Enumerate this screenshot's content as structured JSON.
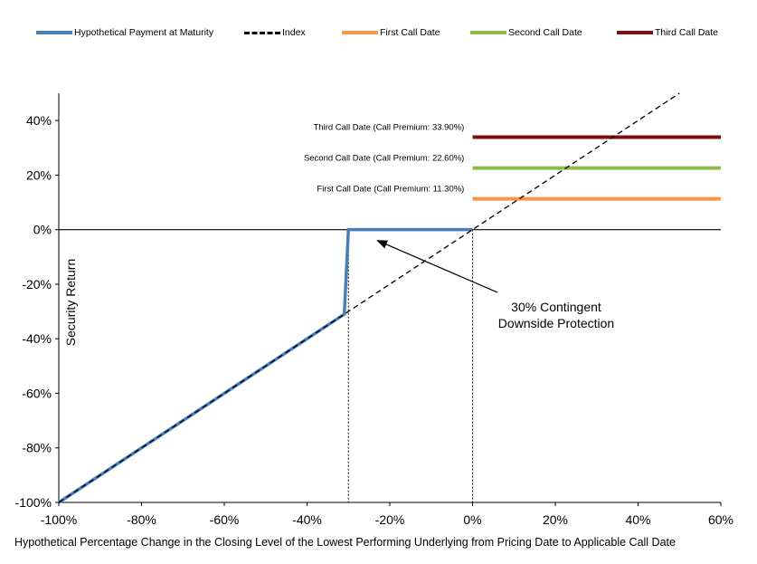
{
  "chart_data": {
    "type": "line",
    "xlabel": "Hypothetical Percentage Change in the Closing Level of the Lowest Performing Underlying from Pricing Date to Applicable Call Date",
    "ylabel": "Security Return",
    "xlim": [
      -100,
      60
    ],
    "ylim": [
      -100,
      50
    ],
    "x_ticks": [
      "-100%",
      "-80%",
      "-60%",
      "-40%",
      "-20%",
      "0%",
      "20%",
      "40%",
      "60%"
    ],
    "y_ticks": [
      "-100%",
      "-80%",
      "-60%",
      "-40%",
      "-20%",
      "0%",
      "20%",
      "40%"
    ],
    "grid": false,
    "legend_position": "top",
    "series": [
      {
        "name": "Hypothetical Payment at Maturity",
        "color": "#4a7ebb",
        "x": [
          -100,
          -31,
          -30,
          -30,
          0
        ],
        "y": [
          -100,
          -31,
          0,
          0,
          0
        ]
      },
      {
        "name": "Index",
        "color": "#000000",
        "style": "dashed",
        "x": [
          -100,
          50
        ],
        "y": [
          -100,
          50
        ]
      },
      {
        "name": "First Call Date",
        "color": "#f79646",
        "x": [
          0,
          60
        ],
        "y": [
          11.3,
          11.3
        ]
      },
      {
        "name": "Second Call Date",
        "color": "#8fbb4d",
        "x": [
          0,
          60
        ],
        "y": [
          22.6,
          22.6
        ]
      },
      {
        "name": "Third Call Date",
        "color": "#7b1010",
        "x": [
          0,
          60
        ],
        "y": [
          33.9,
          33.9
        ]
      }
    ],
    "call_labels": [
      "First Call Date (Call Premium: 11.30%)",
      "Second Call Date (Call Premium: 22.60%)",
      "Third Call Date (Call Premium: 33.90%)"
    ],
    "annotation": {
      "line1": "30% Contingent",
      "line2": "Downside Protection",
      "arrow_to_x": -23,
      "arrow_to_y": -4,
      "arrow_from_x": 6,
      "arrow_from_y": -23
    },
    "vertical_markers": [
      -30,
      0
    ]
  }
}
